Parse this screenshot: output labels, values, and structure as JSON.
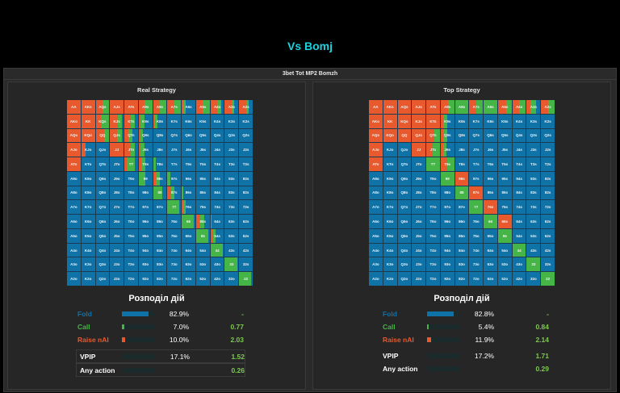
{
  "page_title": "Vs Bomj",
  "panel_title": "3bet Tot MP2 Bomzh",
  "colors": {
    "fold": "#0f73a8",
    "call": "#45b548",
    "raise": "#e8592d",
    "ev": "#7ec850"
  },
  "ranks": [
    "A",
    "K",
    "Q",
    "J",
    "T",
    "9",
    "8",
    "7",
    "6",
    "5",
    "4",
    "3",
    "2"
  ],
  "legend_title": "Розподіл дій",
  "panels": [
    {
      "title": "Real Strategy",
      "overrides": {
        "AA": [
          1,
          0
        ],
        "AKs": [
          1,
          0
        ],
        "AQs": [
          0.5,
          0.5
        ],
        "AJs": [
          1,
          0
        ],
        "ATs": [
          1,
          0
        ],
        "A9s": [
          0.45,
          0.55
        ],
        "A8s": [
          0.5,
          0.5
        ],
        "A7s": [
          0.5,
          0.5
        ],
        "A6s": [
          0.1,
          0.2
        ],
        "A5s": [
          0.5,
          0.5
        ],
        "A4s": [
          0.5,
          0.3
        ],
        "A3s": [
          0.5,
          0.2
        ],
        "A2s": [
          0.5,
          0.2
        ],
        "AKo": [
          1,
          0
        ],
        "KK": [
          1,
          0
        ],
        "KQs": [
          0.4,
          0.6
        ],
        "KJs": [
          0.55,
          0.35
        ],
        "KTs": [
          0.45,
          0.3
        ],
        "K9s": [
          0.1,
          0.3
        ],
        "K8s": [
          0.1,
          0.2
        ],
        "AQo": [
          1,
          0
        ],
        "KQo": [
          1,
          0
        ],
        "QQ": [
          0.6,
          0.4
        ],
        "QJs": [
          0.5,
          0.4
        ],
        "QTs": [
          0.3,
          0.3
        ],
        "Q9s": [
          0.1,
          0.2
        ],
        "AJo": [
          1,
          0
        ],
        "KJo": [
          0.3,
          0
        ],
        "JJ": [
          1,
          0
        ],
        "JTs": [
          0.5,
          0.3
        ],
        "J9s": [
          0.1,
          0.3
        ],
        "ATo": [
          1,
          0
        ],
        "TT": [
          0.2,
          0.6
        ],
        "T9s": [
          0.2,
          0.3
        ],
        "T8s": [
          0,
          0.2
        ],
        "99": [
          0,
          0.5
        ],
        "98s": [
          0.2,
          0.3
        ],
        "97s": [
          0,
          0.2
        ],
        "88": [
          0,
          0.7
        ],
        "87s": [
          0.3,
          0.2
        ],
        "86s": [
          0,
          0.1
        ],
        "77": [
          0,
          0.9
        ],
        "76s": [
          0.1,
          0.2
        ],
        "66": [
          0,
          0.9
        ],
        "65s": [
          0.3,
          0.3
        ],
        "64s": [
          0,
          0.1
        ],
        "55": [
          0,
          0.9
        ],
        "54s": [
          0.2,
          0.2
        ],
        "44": [
          0,
          0.9
        ],
        "33": [
          0,
          0.9
        ],
        "22": [
          0,
          0.9
        ]
      },
      "stats": [
        {
          "label": "Fold",
          "pct": "82.9%",
          "frac": 0.829,
          "ev": "-",
          "key": "fold"
        },
        {
          "label": "Call",
          "pct": "7.0%",
          "frac": 0.07,
          "ev": "0.77",
          "key": "call"
        },
        {
          "label": "Raise nAI",
          "pct": "10.0%",
          "frac": 0.1,
          "ev": "2.03",
          "key": "raise"
        },
        {
          "label": "VPIP",
          "pct": "17.1%",
          "frac": 0,
          "ev": "1.52",
          "key": "vpip"
        },
        {
          "label": "Any action",
          "pct": "",
          "frac": 0,
          "ev": "0.26",
          "key": "any"
        }
      ]
    },
    {
      "title": "Top Strategy",
      "overrides": {
        "AA": [
          1,
          0
        ],
        "AKs": [
          1,
          0
        ],
        "AQs": [
          1,
          0
        ],
        "AJs": [
          1,
          0
        ],
        "ATs": [
          1,
          0
        ],
        "A9s": [
          0.55,
          0.45
        ],
        "A8s": [
          0,
          1
        ],
        "A7s": [
          0.5,
          0.5
        ],
        "A6s": [
          0,
          1
        ],
        "A5s": [
          0.6,
          0.4
        ],
        "A4s": [
          0.5,
          0.5
        ],
        "A3s": [
          0.3,
          0.4
        ],
        "A2s": [
          0.5,
          0.5
        ],
        "AKo": [
          1,
          0
        ],
        "KK": [
          1,
          0
        ],
        "KQs": [
          1,
          0
        ],
        "KJs": [
          1,
          0
        ],
        "KTs": [
          1,
          0
        ],
        "K9s": [
          0.2,
          0.3
        ],
        "AQo": [
          1,
          0
        ],
        "KQo": [
          1,
          0
        ],
        "QQ": [
          1,
          0
        ],
        "QJs": [
          1,
          0
        ],
        "QTs": [
          0.6,
          0.4
        ],
        "Q9s": [
          0.2,
          0.3
        ],
        "AJo": [
          1,
          0
        ],
        "KJo": [
          0,
          0
        ],
        "JJ": [
          1,
          0
        ],
        "JTs": [
          0.5,
          0.5
        ],
        "J9s": [
          0.2,
          0.2
        ],
        "ATo": [
          1,
          0
        ],
        "TT": [
          0,
          1
        ],
        "T9s": [
          0.5,
          0.5
        ],
        "99": [
          0,
          1
        ],
        "98s": [
          1,
          0
        ],
        "88": [
          0,
          1
        ],
        "87s": [
          1,
          0
        ],
        "77": [
          0,
          1
        ],
        "76s": [
          1,
          0
        ],
        "66": [
          0,
          1
        ],
        "65s": [
          1,
          0
        ],
        "55": [
          0,
          1
        ],
        "54s": [
          0,
          0
        ],
        "44": [
          0,
          1
        ],
        "33": [
          0,
          1
        ],
        "22": [
          0,
          1
        ]
      },
      "stats": [
        {
          "label": "Fold",
          "pct": "82.8%",
          "frac": 0.828,
          "ev": "-",
          "key": "fold"
        },
        {
          "label": "Call",
          "pct": "5.4%",
          "frac": 0.054,
          "ev": "0.84",
          "key": "call"
        },
        {
          "label": "Raise nAI",
          "pct": "11.9%",
          "frac": 0.119,
          "ev": "2.14",
          "key": "raise"
        },
        {
          "label": "VPIP",
          "pct": "17.2%",
          "frac": 0,
          "ev": "1.71",
          "key": "vpip"
        },
        {
          "label": "Any action",
          "pct": "",
          "frac": 0,
          "ev": "0.29",
          "key": "any"
        }
      ]
    }
  ]
}
